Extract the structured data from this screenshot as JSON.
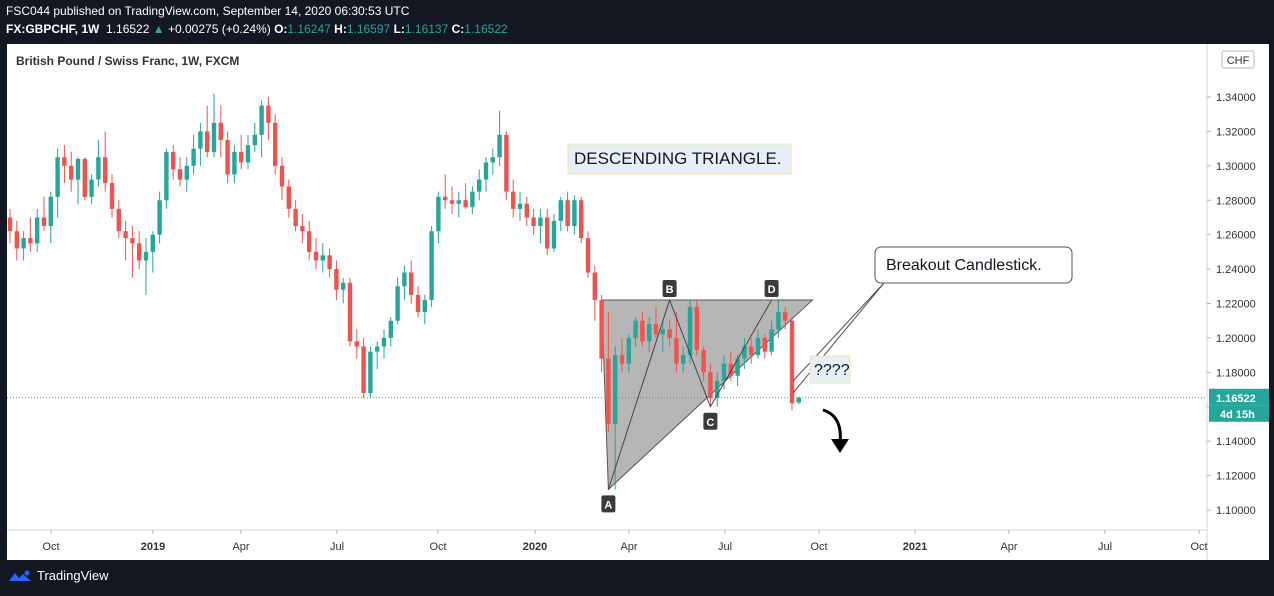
{
  "header": {
    "publish_line": "FSC044 published on TradingView.com, September 14, 2020 06:30:53 UTC",
    "symbol": "FX:GBPCHF, 1W",
    "last": "1.16522",
    "change": "+0.00275 (+0.24%)",
    "open_label": "O:",
    "open": "1.16247",
    "high_label": "H:",
    "high": "1.16597",
    "low_label": "L:",
    "low": "1.16137",
    "close_label": "C:",
    "close": "1.16522"
  },
  "footer": {
    "brand": "TradingView"
  },
  "colors": {
    "up": "#26a69a",
    "down": "#ef5350",
    "background": "#ffffff",
    "triangle_fill": "#a9a9a9"
  },
  "chart_data": {
    "type": "candlestick",
    "title": "British Pound / Swiss Franc, 1W, FXCM",
    "currency": "CHF",
    "ylim": [
      1.09,
      1.36
    ],
    "y_ticks": [
      "1.10000",
      "1.12000",
      "1.14000",
      "1.16000",
      "1.18000",
      "1.20000",
      "1.22000",
      "1.24000",
      "1.26000",
      "1.28000",
      "1.30000",
      "1.32000",
      "1.34000"
    ],
    "x_ticks": [
      "Oct",
      "2019",
      "Apr",
      "Jul",
      "Oct",
      "2020",
      "Apr",
      "Jul",
      "Oct",
      "2021",
      "Apr",
      "Jul",
      "Oct"
    ],
    "x_tick_bold": [
      false,
      true,
      false,
      false,
      false,
      true,
      false,
      false,
      false,
      true,
      false,
      false,
      false
    ],
    "grid": false,
    "last_price_label": "1.16522",
    "countdown_label": "4d 15h",
    "last_price": 1.16522,
    "candles": [
      {
        "o": 1.27,
        "h": 1.275,
        "l": 1.255,
        "c": 1.262
      },
      {
        "o": 1.262,
        "h": 1.268,
        "l": 1.245,
        "c": 1.252
      },
      {
        "o": 1.252,
        "h": 1.262,
        "l": 1.245,
        "c": 1.258
      },
      {
        "o": 1.258,
        "h": 1.27,
        "l": 1.25,
        "c": 1.255
      },
      {
        "o": 1.255,
        "h": 1.275,
        "l": 1.25,
        "c": 1.27
      },
      {
        "o": 1.27,
        "h": 1.282,
        "l": 1.262,
        "c": 1.265
      },
      {
        "o": 1.265,
        "h": 1.285,
        "l": 1.255,
        "c": 1.282
      },
      {
        "o": 1.282,
        "h": 1.31,
        "l": 1.27,
        "c": 1.305
      },
      {
        "o": 1.305,
        "h": 1.312,
        "l": 1.29,
        "c": 1.3
      },
      {
        "o": 1.3,
        "h": 1.308,
        "l": 1.285,
        "c": 1.292
      },
      {
        "o": 1.292,
        "h": 1.305,
        "l": 1.278,
        "c": 1.304
      },
      {
        "o": 1.304,
        "h": 1.305,
        "l": 1.28,
        "c": 1.282
      },
      {
        "o": 1.282,
        "h": 1.295,
        "l": 1.278,
        "c": 1.292
      },
      {
        "o": 1.292,
        "h": 1.315,
        "l": 1.288,
        "c": 1.305
      },
      {
        "o": 1.305,
        "h": 1.32,
        "l": 1.285,
        "c": 1.29
      },
      {
        "o": 1.29,
        "h": 1.295,
        "l": 1.27,
        "c": 1.275
      },
      {
        "o": 1.275,
        "h": 1.28,
        "l": 1.258,
        "c": 1.262
      },
      {
        "o": 1.262,
        "h": 1.268,
        "l": 1.245,
        "c": 1.258
      },
      {
        "o": 1.258,
        "h": 1.265,
        "l": 1.235,
        "c": 1.255
      },
      {
        "o": 1.255,
        "h": 1.262,
        "l": 1.24,
        "c": 1.245
      },
      {
        "o": 1.245,
        "h": 1.258,
        "l": 1.225,
        "c": 1.25
      },
      {
        "o": 1.25,
        "h": 1.262,
        "l": 1.238,
        "c": 1.26
      },
      {
        "o": 1.26,
        "h": 1.285,
        "l": 1.255,
        "c": 1.28
      },
      {
        "o": 1.28,
        "h": 1.31,
        "l": 1.275,
        "c": 1.308
      },
      {
        "o": 1.308,
        "h": 1.312,
        "l": 1.292,
        "c": 1.298
      },
      {
        "o": 1.298,
        "h": 1.305,
        "l": 1.288,
        "c": 1.292
      },
      {
        "o": 1.292,
        "h": 1.305,
        "l": 1.285,
        "c": 1.3
      },
      {
        "o": 1.3,
        "h": 1.318,
        "l": 1.295,
        "c": 1.31
      },
      {
        "o": 1.31,
        "h": 1.325,
        "l": 1.3,
        "c": 1.32
      },
      {
        "o": 1.32,
        "h": 1.335,
        "l": 1.305,
        "c": 1.308
      },
      {
        "o": 1.308,
        "h": 1.342,
        "l": 1.305,
        "c": 1.325
      },
      {
        "o": 1.325,
        "h": 1.335,
        "l": 1.305,
        "c": 1.315
      },
      {
        "o": 1.315,
        "h": 1.32,
        "l": 1.29,
        "c": 1.295
      },
      {
        "o": 1.295,
        "h": 1.312,
        "l": 1.29,
        "c": 1.308
      },
      {
        "o": 1.308,
        "h": 1.318,
        "l": 1.298,
        "c": 1.302
      },
      {
        "o": 1.302,
        "h": 1.318,
        "l": 1.298,
        "c": 1.312
      },
      {
        "o": 1.312,
        "h": 1.325,
        "l": 1.308,
        "c": 1.318
      },
      {
        "o": 1.318,
        "h": 1.338,
        "l": 1.305,
        "c": 1.335
      },
      {
        "o": 1.335,
        "h": 1.34,
        "l": 1.315,
        "c": 1.325
      },
      {
        "o": 1.325,
        "h": 1.33,
        "l": 1.295,
        "c": 1.3
      },
      {
        "o": 1.3,
        "h": 1.305,
        "l": 1.28,
        "c": 1.288
      },
      {
        "o": 1.288,
        "h": 1.292,
        "l": 1.27,
        "c": 1.275
      },
      {
        "o": 1.275,
        "h": 1.28,
        "l": 1.262,
        "c": 1.265
      },
      {
        "o": 1.265,
        "h": 1.272,
        "l": 1.255,
        "c": 1.262
      },
      {
        "o": 1.262,
        "h": 1.268,
        "l": 1.245,
        "c": 1.25
      },
      {
        "o": 1.25,
        "h": 1.258,
        "l": 1.24,
        "c": 1.245
      },
      {
        "o": 1.245,
        "h": 1.255,
        "l": 1.238,
        "c": 1.248
      },
      {
        "o": 1.248,
        "h": 1.252,
        "l": 1.235,
        "c": 1.24
      },
      {
        "o": 1.24,
        "h": 1.245,
        "l": 1.222,
        "c": 1.228
      },
      {
        "o": 1.228,
        "h": 1.235,
        "l": 1.22,
        "c": 1.232
      },
      {
        "o": 1.232,
        "h": 1.235,
        "l": 1.195,
        "c": 1.198
      },
      {
        "o": 1.198,
        "h": 1.205,
        "l": 1.188,
        "c": 1.195
      },
      {
        "o": 1.195,
        "h": 1.2,
        "l": 1.165,
        "c": 1.168
      },
      {
        "o": 1.168,
        "h": 1.195,
        "l": 1.165,
        "c": 1.192
      },
      {
        "o": 1.192,
        "h": 1.198,
        "l": 1.182,
        "c": 1.195
      },
      {
        "o": 1.195,
        "h": 1.205,
        "l": 1.188,
        "c": 1.2
      },
      {
        "o": 1.2,
        "h": 1.212,
        "l": 1.195,
        "c": 1.21
      },
      {
        "o": 1.21,
        "h": 1.235,
        "l": 1.208,
        "c": 1.23
      },
      {
        "o": 1.23,
        "h": 1.242,
        "l": 1.222,
        "c": 1.238
      },
      {
        "o": 1.238,
        "h": 1.245,
        "l": 1.22,
        "c": 1.225
      },
      {
        "o": 1.225,
        "h": 1.23,
        "l": 1.212,
        "c": 1.215
      },
      {
        "o": 1.215,
        "h": 1.225,
        "l": 1.208,
        "c": 1.222
      },
      {
        "o": 1.222,
        "h": 1.265,
        "l": 1.218,
        "c": 1.262
      },
      {
        "o": 1.262,
        "h": 1.285,
        "l": 1.255,
        "c": 1.282
      },
      {
        "o": 1.282,
        "h": 1.295,
        "l": 1.275,
        "c": 1.28
      },
      {
        "o": 1.28,
        "h": 1.288,
        "l": 1.272,
        "c": 1.278
      },
      {
        "o": 1.278,
        "h": 1.285,
        "l": 1.27,
        "c": 1.28
      },
      {
        "o": 1.28,
        "h": 1.29,
        "l": 1.275,
        "c": 1.276
      },
      {
        "o": 1.276,
        "h": 1.288,
        "l": 1.272,
        "c": 1.285
      },
      {
        "o": 1.285,
        "h": 1.298,
        "l": 1.28,
        "c": 1.292
      },
      {
        "o": 1.292,
        "h": 1.305,
        "l": 1.285,
        "c": 1.302
      },
      {
        "o": 1.302,
        "h": 1.31,
        "l": 1.295,
        "c": 1.305
      },
      {
        "o": 1.305,
        "h": 1.332,
        "l": 1.3,
        "c": 1.318
      },
      {
        "o": 1.318,
        "h": 1.32,
        "l": 1.28,
        "c": 1.285
      },
      {
        "o": 1.285,
        "h": 1.292,
        "l": 1.27,
        "c": 1.275
      },
      {
        "o": 1.275,
        "h": 1.285,
        "l": 1.268,
        "c": 1.278
      },
      {
        "o": 1.278,
        "h": 1.282,
        "l": 1.265,
        "c": 1.27
      },
      {
        "o": 1.27,
        "h": 1.275,
        "l": 1.26,
        "c": 1.265
      },
      {
        "o": 1.265,
        "h": 1.275,
        "l": 1.255,
        "c": 1.27
      },
      {
        "o": 1.27,
        "h": 1.275,
        "l": 1.248,
        "c": 1.252
      },
      {
        "o": 1.252,
        "h": 1.272,
        "l": 1.25,
        "c": 1.268
      },
      {
        "o": 1.268,
        "h": 1.282,
        "l": 1.262,
        "c": 1.28
      },
      {
        "o": 1.28,
        "h": 1.285,
        "l": 1.262,
        "c": 1.265
      },
      {
        "o": 1.265,
        "h": 1.283,
        "l": 1.26,
        "c": 1.28
      },
      {
        "o": 1.28,
        "h": 1.282,
        "l": 1.255,
        "c": 1.258
      },
      {
        "o": 1.258,
        "h": 1.262,
        "l": 1.235,
        "c": 1.238
      },
      {
        "o": 1.238,
        "h": 1.242,
        "l": 1.21,
        "c": 1.222
      },
      {
        "o": 1.222,
        "h": 1.225,
        "l": 1.18,
        "c": 1.188
      },
      {
        "o": 1.188,
        "h": 1.215,
        "l": 1.145,
        "c": 1.15
      },
      {
        "o": 1.15,
        "h": 1.195,
        "l": 1.112,
        "c": 1.19
      },
      {
        "o": 1.19,
        "h": 1.2,
        "l": 1.18,
        "c": 1.185
      },
      {
        "o": 1.185,
        "h": 1.202,
        "l": 1.18,
        "c": 1.2
      },
      {
        "o": 1.2,
        "h": 1.212,
        "l": 1.195,
        "c": 1.21
      },
      {
        "o": 1.21,
        "h": 1.215,
        "l": 1.195,
        "c": 1.198
      },
      {
        "o": 1.198,
        "h": 1.212,
        "l": 1.192,
        "c": 1.208
      },
      {
        "o": 1.208,
        "h": 1.218,
        "l": 1.2,
        "c": 1.202
      },
      {
        "o": 1.202,
        "h": 1.21,
        "l": 1.192,
        "c": 1.205
      },
      {
        "o": 1.205,
        "h": 1.21,
        "l": 1.195,
        "c": 1.2
      },
      {
        "o": 1.2,
        "h": 1.215,
        "l": 1.18,
        "c": 1.185
      },
      {
        "o": 1.185,
        "h": 1.195,
        "l": 1.18,
        "c": 1.19
      },
      {
        "o": 1.19,
        "h": 1.222,
        "l": 1.185,
        "c": 1.218
      },
      {
        "o": 1.218,
        "h": 1.222,
        "l": 1.19,
        "c": 1.193
      },
      {
        "o": 1.193,
        "h": 1.195,
        "l": 1.175,
        "c": 1.18
      },
      {
        "o": 1.18,
        "h": 1.185,
        "l": 1.16,
        "c": 1.165
      },
      {
        "o": 1.165,
        "h": 1.18,
        "l": 1.16,
        "c": 1.175
      },
      {
        "o": 1.175,
        "h": 1.19,
        "l": 1.17,
        "c": 1.185
      },
      {
        "o": 1.185,
        "h": 1.192,
        "l": 1.175,
        "c": 1.178
      },
      {
        "o": 1.178,
        "h": 1.19,
        "l": 1.172,
        "c": 1.188
      },
      {
        "o": 1.188,
        "h": 1.2,
        "l": 1.182,
        "c": 1.195
      },
      {
        "o": 1.195,
        "h": 1.2,
        "l": 1.185,
        "c": 1.19
      },
      {
        "o": 1.19,
        "h": 1.205,
        "l": 1.188,
        "c": 1.2
      },
      {
        "o": 1.2,
        "h": 1.202,
        "l": 1.188,
        "c": 1.192
      },
      {
        "o": 1.192,
        "h": 1.21,
        "l": 1.19,
        "c": 1.205
      },
      {
        "o": 1.205,
        "h": 1.222,
        "l": 1.2,
        "c": 1.215
      },
      {
        "o": 1.215,
        "h": 1.218,
        "l": 1.205,
        "c": 1.21
      },
      {
        "o": 1.21,
        "h": 1.212,
        "l": 1.158,
        "c": 1.162
      },
      {
        "o": 1.16247,
        "h": 1.16597,
        "l": 1.16137,
        "c": 1.16522
      }
    ],
    "annotations": {
      "pattern_label": "DESCENDING TRIANGLE.",
      "callout": "Breakout Candlestick.",
      "question": "????",
      "points": [
        {
          "label": "A",
          "bar": 88,
          "price": 1.112
        },
        {
          "label": "B",
          "bar": 97,
          "price": 1.222
        },
        {
          "label": "C",
          "bar": 103,
          "price": 1.16
        },
        {
          "label": "D",
          "bar": 112,
          "price": 1.222
        }
      ],
      "triangle": [
        {
          "bar": 87,
          "price": 1.222
        },
        {
          "bar": 118,
          "price": 1.222
        },
        {
          "bar": 88,
          "price": 1.112
        }
      ]
    }
  }
}
